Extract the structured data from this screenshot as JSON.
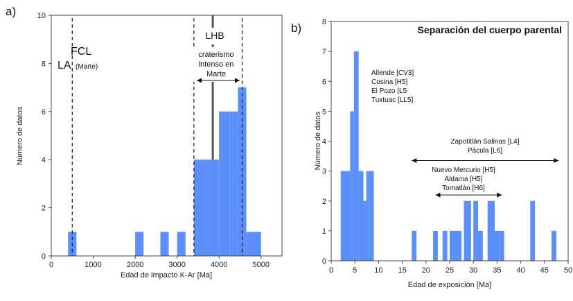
{
  "chart_data": [
    {
      "panel_label": "a)",
      "type": "bar",
      "xlabel": "Edad de impacto K-Ar [Ma]",
      "ylabel": "Número de datos",
      "xlim": [
        0,
        5500
      ],
      "ylim": [
        0,
        10
      ],
      "x_ticks": [
        "0",
        "1000",
        "2000",
        "3000",
        "4000",
        "5000"
      ],
      "y_ticks": [
        "0",
        "2",
        "4",
        "6",
        "8",
        "10"
      ],
      "bin_width": 250,
      "bins": [
        {
          "x0": 400,
          "x1": 600,
          "value": 1
        },
        {
          "x0": 2000,
          "x1": 2200,
          "value": 1
        },
        {
          "x0": 2600,
          "x1": 2800,
          "value": 1
        },
        {
          "x0": 3000,
          "x1": 3200,
          "value": 1
        },
        {
          "x0": 3400,
          "x1": 3750,
          "value": 4
        },
        {
          "x0": 3750,
          "x1": 4000,
          "value": 4
        },
        {
          "x0": 4000,
          "x1": 4250,
          "value": 6
        },
        {
          "x0": 4250,
          "x1": 4450,
          "value": 6
        },
        {
          "x0": 4450,
          "x1": 4650,
          "value": 7
        },
        {
          "x0": 4650,
          "x1": 5000,
          "value": 1
        }
      ],
      "vlines": [
        {
          "x": 500,
          "style": "dashed"
        },
        {
          "x": 3400,
          "style": "dashed"
        },
        {
          "x": 3850,
          "style": "solid"
        },
        {
          "x": 4550,
          "style": "dashed"
        }
      ],
      "annotations": {
        "fcl": "FCL",
        "la": "LA",
        "la_sub": "(Marte)",
        "lhb": "LHB",
        "crater_lines": [
          "craterismo",
          "intenso en",
          "Marte"
        ]
      }
    },
    {
      "panel_label": "b)",
      "type": "bar",
      "title": "Separación del cuerpo parental",
      "xlabel": "Edad de exposición [Ma]",
      "ylabel": "Número de datos",
      "xlim": [
        0,
        50
      ],
      "ylim": [
        0,
        8
      ],
      "x_ticks": [
        "0",
        "5",
        "10",
        "15",
        "20",
        "25",
        "30",
        "35",
        "40",
        "45",
        "50"
      ],
      "y_ticks": [
        "0",
        "1",
        "2",
        "3",
        "4",
        "5",
        "6",
        "7",
        "8"
      ],
      "bins": [
        {
          "x0": 2,
          "x1": 4,
          "value": 3
        },
        {
          "x0": 4,
          "x1": 4.8,
          "value": 5
        },
        {
          "x0": 4.8,
          "x1": 5.8,
          "value": 7
        },
        {
          "x0": 5.8,
          "x1": 6.8,
          "value": 3
        },
        {
          "x0": 6.8,
          "x1": 7.4,
          "value": 2
        },
        {
          "x0": 7.4,
          "x1": 8,
          "value": 3
        },
        {
          "x0": 8,
          "x1": 9,
          "value": 3
        },
        {
          "x0": 17,
          "x1": 18,
          "value": 1
        },
        {
          "x0": 21.5,
          "x1": 22.5,
          "value": 1
        },
        {
          "x0": 23.5,
          "x1": 24.5,
          "value": 1
        },
        {
          "x0": 25,
          "x1": 27.5,
          "value": 1
        },
        {
          "x0": 28,
          "x1": 29.5,
          "value": 2
        },
        {
          "x0": 30,
          "x1": 31,
          "value": 2
        },
        {
          "x0": 31,
          "x1": 32,
          "value": 1
        },
        {
          "x0": 33,
          "x1": 34.5,
          "value": 2
        },
        {
          "x0": 34.5,
          "x1": 35.5,
          "value": 1
        },
        {
          "x0": 35.5,
          "x1": 36.5,
          "value": 1
        },
        {
          "x0": 42,
          "x1": 43,
          "value": 2
        },
        {
          "x0": 46.5,
          "x1": 47.5,
          "value": 1
        }
      ],
      "annotations": {
        "group1": [
          "Allende [CV3]",
          "Cosina [H5]",
          "El Pozo [L5",
          "Tuxtuac [LL5]"
        ],
        "group2": [
          "Zapotitlán Salinas [L4]",
          "Pácula [L6]"
        ],
        "group3": [
          "Nuevo Mercurio [H5]",
          "Aldama [H5]",
          "Tomatlán [H6]"
        ]
      },
      "arrows": [
        {
          "from": 17,
          "to": 48,
          "y": 3.35
        },
        {
          "from": 22,
          "to": 36,
          "y": 2.2
        }
      ]
    }
  ],
  "colors": {
    "bar": "#5b8ff9",
    "axis": "#444444",
    "text": "#111111"
  }
}
